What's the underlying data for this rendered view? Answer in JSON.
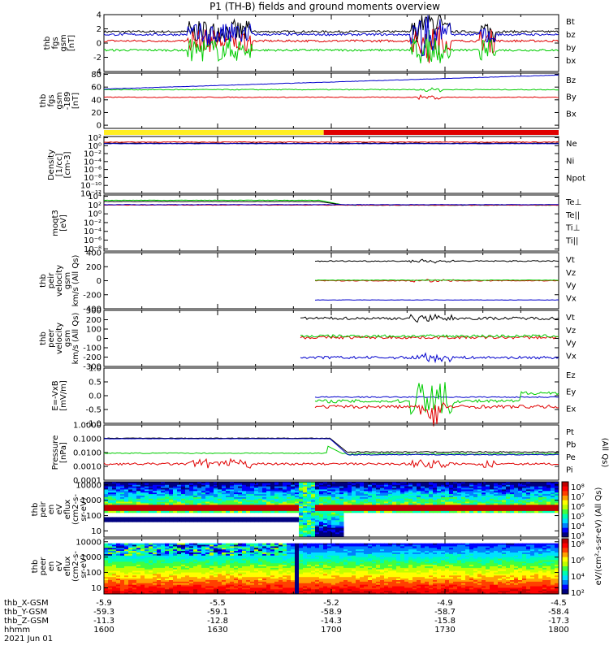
{
  "title": "P1 (TH-B) fields and ground moments overview",
  "colors": {
    "black": "#000000",
    "red": "#e00000",
    "green": "#00cc00",
    "blue": "#0000cc",
    "yellow": "#ffee22",
    "axis": "#000000"
  },
  "panels": [
    {
      "id": "fgs",
      "ylabel": [
        "thb",
        "fgs",
        "gsm",
        "[nT]"
      ],
      "ticks": [
        "4",
        "2",
        "0",
        "-2",
        "-4"
      ],
      "tick_values": [
        4,
        2,
        0,
        -2,
        -4
      ],
      "ylim": [
        -4,
        4
      ],
      "legend": [
        {
          "text": "Bt",
          "color": "#000000"
        },
        {
          "text": "bz",
          "color": "#e00000"
        },
        {
          "text": "by",
          "color": "#00cc00"
        },
        {
          "text": "bx",
          "color": "#0000cc"
        }
      ],
      "series": [
        {
          "name": "Bt",
          "color": "#000000",
          "base": 1.6
        },
        {
          "name": "bz",
          "color": "#e00000",
          "base": 0.3
        },
        {
          "name": "by",
          "color": "#00cc00",
          "base": -1.0
        },
        {
          "name": "bx",
          "color": "#0000cc",
          "base": 1.2
        }
      ]
    },
    {
      "id": "fgs_large",
      "ylabel": [
        "thb",
        "fgs",
        "gsm",
        "-189",
        "[nT]"
      ],
      "ticks": [
        "80",
        "60",
        "40",
        "20",
        "0"
      ],
      "tick_values": [
        80,
        60,
        40,
        20,
        0
      ],
      "ylim": [
        -5,
        82
      ],
      "legend": [
        {
          "text": "Bz",
          "color": "#e00000"
        },
        {
          "text": "By",
          "color": "#00cc00"
        },
        {
          "text": "Bx",
          "color": "#0000cc"
        }
      ],
      "series": [
        {
          "name": "Bz",
          "color": "#e00000",
          "base": 44
        },
        {
          "name": "By",
          "color": "#00cc00",
          "base": 56
        },
        {
          "name": "Bx",
          "color": "#0000cc",
          "base": 62
        }
      ]
    },
    {
      "id": "density",
      "ylabel": [
        "Density",
        "[1/cc]",
        "[cm-3]"
      ],
      "ticks": [
        "10²",
        "10⁰",
        "10⁻²",
        "10⁻⁴",
        "10⁻⁶",
        "10⁻⁸",
        "10⁻¹⁰",
        "10⁻¹²"
      ],
      "tick_values": [
        2,
        0,
        -2,
        -4,
        -6,
        -8,
        -10,
        -12
      ],
      "ylim": [
        -12,
        2.3
      ],
      "legend": [
        {
          "text": "Ne",
          "color": "#e00000"
        },
        {
          "text": "Ni",
          "color": "#000000"
        },
        {
          "text": "Npot",
          "color": "#0000cc"
        }
      ]
    },
    {
      "id": "temp",
      "ylabel": [
        "moqt3",
        "[eV]"
      ],
      "ticks": [
        "10⁴",
        "10²",
        "10⁰",
        "10⁻²",
        "10⁻⁴",
        "10⁻⁶",
        "10⁻⁸"
      ],
      "tick_values": [
        4,
        2,
        0,
        -2,
        -4,
        -6,
        -8
      ],
      "ylim": [
        -8.5,
        4.3
      ],
      "legend": [
        {
          "text": "Te⊥",
          "color": "#e00000"
        },
        {
          "text": "Te||",
          "color": "#000000"
        },
        {
          "text": "Ti⊥",
          "color": "#0000cc"
        },
        {
          "text": "Ti||",
          "color": "#00cc00"
        }
      ]
    },
    {
      "id": "peir_vel",
      "ylabel": [
        "thb",
        "peir",
        "velocity",
        "gsm",
        "km/s (All Qs)"
      ],
      "ticks": [
        "400",
        "200",
        "0",
        "-200",
        "-400"
      ],
      "tick_values": [
        400,
        200,
        0,
        -200,
        -400
      ],
      "ylim": [
        -400,
        400
      ],
      "legend": [
        {
          "text": "Vt",
          "color": "#000000"
        },
        {
          "text": "Vz",
          "color": "#e00000"
        },
        {
          "text": "Vy",
          "color": "#00cc00"
        },
        {
          "text": "Vx",
          "color": "#0000cc"
        }
      ]
    },
    {
      "id": "peer_vel",
      "ylabel": [
        "thb",
        "peer",
        "velocity",
        "gsm",
        "km/s (All Qs)"
      ],
      "ticks": [
        "300",
        "200",
        "100",
        "0",
        "-100",
        "-200",
        "-300"
      ],
      "tick_values": [
        300,
        200,
        100,
        0,
        -100,
        -200,
        -300
      ],
      "ylim": [
        -300,
        300
      ],
      "legend": [
        {
          "text": "Vt",
          "color": "#000000"
        },
        {
          "text": "Vz",
          "color": "#e00000"
        },
        {
          "text": "Vy",
          "color": "#00cc00"
        },
        {
          "text": "Vx",
          "color": "#0000cc"
        }
      ]
    },
    {
      "id": "efield",
      "ylabel": [
        "E=-VxB",
        "[mV/m]"
      ],
      "ticks": [
        "1.0",
        "0.5",
        "0.0",
        "-0.5",
        "-1.0"
      ],
      "tick_values": [
        1,
        0.5,
        0,
        -0.5,
        -1
      ],
      "ylim": [
        -1,
        1
      ],
      "legend": [
        {
          "text": "Ez",
          "color": "#e00000"
        },
        {
          "text": "Ey",
          "color": "#00cc00"
        },
        {
          "text": "Ex",
          "color": "#0000cc"
        }
      ]
    },
    {
      "id": "pressure",
      "ylabel": [
        "Pressure",
        "[nPa]"
      ],
      "ticks": [
        "1.0000",
        "0.1000",
        "0.0100",
        "0.0010",
        "0.0001"
      ],
      "tick_values": [
        0,
        -1,
        -2,
        -3,
        -4
      ],
      "ylim": [
        -4,
        0
      ],
      "legend": [
        {
          "text": "Pt",
          "color": "#000000"
        },
        {
          "text": "Pb",
          "color": "#e00000"
        },
        {
          "text": "Pe",
          "color": "#00cc00"
        },
        {
          "text": "Pi",
          "color": "#0000cc"
        }
      ],
      "side_label": "(All Qs)"
    },
    {
      "id": "peir_spec",
      "ylabel": [
        "thb",
        "peir",
        "en",
        "eV",
        "eflux",
        "(cm2-s-",
        "sr-eV)"
      ],
      "ticks": [
        "10000",
        "1000",
        "100",
        "10"
      ],
      "tick_values": [
        4,
        3,
        2,
        1
      ],
      "ylim": [
        0.6,
        4.2
      ],
      "colorbar_ticks": [
        "10⁸",
        "10⁷",
        "10⁶",
        "10⁵",
        "10⁴",
        "10³"
      ],
      "colorbar_label": "eV/(cm²-s-sr-eV) (All Qs)"
    },
    {
      "id": "peer_spec",
      "ylabel": [
        "thb",
        "peer",
        "en",
        "eV",
        "eflux",
        "(cm2-s-",
        "sr-eV)"
      ],
      "ticks": [
        "10000",
        "1000",
        "100",
        "10"
      ],
      "tick_values": [
        4,
        3,
        2,
        1
      ],
      "ylim": [
        0.6,
        4.2
      ],
      "colorbar_ticks": [
        "10⁸",
        "10⁶",
        "10⁴",
        "10²"
      ],
      "colorbar_label": "eV/(cm²-s-sr-eV)"
    }
  ],
  "chart_data": {
    "type": "line",
    "title": "P1 (TH-B) fields and ground moments overview",
    "x_axis": {
      "rows": [
        {
          "label": "thb_X-GSM",
          "values": [
            "-5.9",
            "-5.5",
            "-5.2",
            "-4.9",
            "-4.5"
          ]
        },
        {
          "label": "thb_Y-GSM",
          "values": [
            "-59.3",
            "-59.1",
            "-58.9",
            "-58.7",
            "-58.4"
          ]
        },
        {
          "label": "thb_Z-GSM",
          "values": [
            "-11.3",
            "-12.8",
            "-14.3",
            "-15.8",
            "-17.3"
          ]
        },
        {
          "label": "hhmm",
          "values": [
            "1600",
            "1630",
            "1700",
            "1730",
            "1800"
          ]
        }
      ],
      "date": "2021 Jun 01",
      "range_minutes": [
        0,
        120
      ]
    },
    "mode_bar": {
      "yellow_until_minute": 58,
      "red_from_minute": 58
    }
  }
}
